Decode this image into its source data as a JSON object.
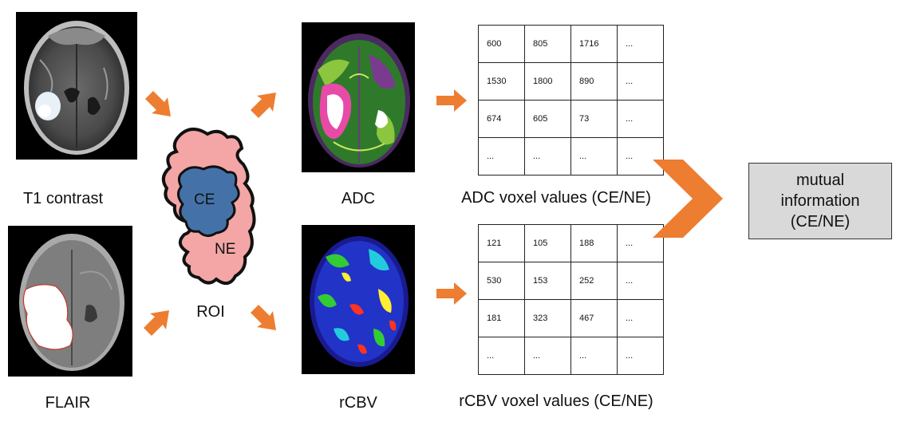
{
  "labels": {
    "t1": "T1 contrast",
    "flair": "FLAIR",
    "roi": "ROI",
    "ce": "CE",
    "ne": "NE",
    "adc": "ADC",
    "rcbv": "rCBV",
    "adc_values": "ADC voxel values (CE/NE)",
    "rcbv_values": "rCBV voxel values (CE/NE)"
  },
  "output": {
    "line1": "mutual",
    "line2": "information",
    "line3": "(CE/NE)"
  },
  "adc_table": [
    [
      "600",
      "805",
      "1716",
      "..."
    ],
    [
      "1530",
      "1800",
      "890",
      "..."
    ],
    [
      "674",
      "605",
      "73",
      "..."
    ],
    [
      "...",
      "...",
      "...",
      "..."
    ]
  ],
  "rcbv_table": [
    [
      "121",
      "105",
      "188",
      "..."
    ],
    [
      "530",
      "153",
      "252",
      "..."
    ],
    [
      "181",
      "323",
      "467",
      "..."
    ],
    [
      "...",
      "...",
      "...",
      "..."
    ]
  ],
  "colors": {
    "arrow": "#ed7d31",
    "roi_fill": "#f4a6a6",
    "ce_fill": "#4472a8",
    "output_box": "#d9d9d9"
  }
}
